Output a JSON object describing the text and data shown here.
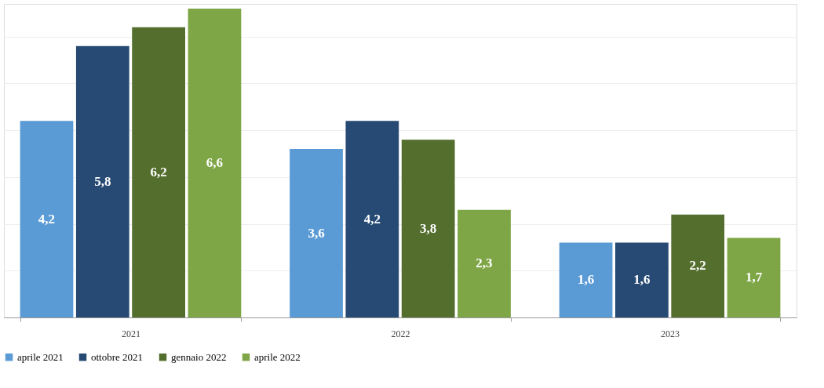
{
  "chart_data": {
    "type": "bar",
    "categories": [
      "2021",
      "2022",
      "2023"
    ],
    "series": [
      {
        "name": "aprile 2021",
        "color": "#5b9bd5",
        "values": [
          4.2,
          3.6,
          1.6
        ],
        "value_labels": [
          "4,2",
          "3,6",
          "1,6"
        ]
      },
      {
        "name": "ottobre 2021",
        "color": "#264a73",
        "values": [
          5.8,
          4.2,
          1.6
        ],
        "value_labels": [
          "5,8",
          "4,2",
          "1,6"
        ]
      },
      {
        "name": "gennaio 2022",
        "color": "#546e2e",
        "values": [
          6.2,
          3.8,
          2.2
        ],
        "value_labels": [
          "6,2",
          "3,8",
          "2,2"
        ]
      },
      {
        "name": "aprile 2022",
        "color": "#7ea646",
        "values": [
          6.6,
          2.3,
          1.7
        ],
        "value_labels": [
          "6,6",
          "2,3",
          "1,7"
        ]
      }
    ],
    "ylim": [
      0,
      6.7
    ],
    "yticks": [
      {
        "value": 0,
        "label": null
      },
      {
        "value": 1,
        "label": null
      },
      {
        "value": 2,
        "label": null
      },
      {
        "value": 3,
        "label": null
      },
      {
        "value": 4,
        "label": null
      },
      {
        "value": 5,
        "label": null
      },
      {
        "value": 6,
        "label": null
      }
    ],
    "grid": "y",
    "legend": "bottom",
    "tick_labels": "x"
  }
}
